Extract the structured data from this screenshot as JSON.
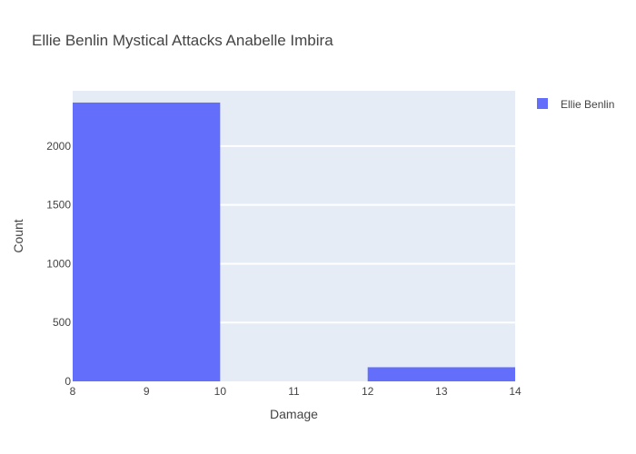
{
  "chart_data": {
    "type": "bar",
    "title": "Ellie Benlin Mystical Attacks Anabelle Imbira",
    "xlabel": "Damage",
    "ylabel": "Count",
    "xlim": [
      8,
      14
    ],
    "ylim": [
      0,
      2470
    ],
    "x_ticks": [
      8,
      9,
      10,
      11,
      12,
      13,
      14
    ],
    "y_ticks": [
      0,
      500,
      1000,
      1500,
      2000
    ],
    "grid": true,
    "legend": {
      "placement": "top-right"
    },
    "series": [
      {
        "name": "Ellie Benlin",
        "color": "#636efa",
        "bins": [
          {
            "x0": 8,
            "x1": 10,
            "count": 2370
          },
          {
            "x0": 10,
            "x1": 12,
            "count": 0
          },
          {
            "x0": 12,
            "x1": 14,
            "count": 120
          }
        ]
      }
    ]
  },
  "colors": {
    "plot_background": "#e5ecf6",
    "grid": "#ffffff",
    "text": "#444444"
  }
}
